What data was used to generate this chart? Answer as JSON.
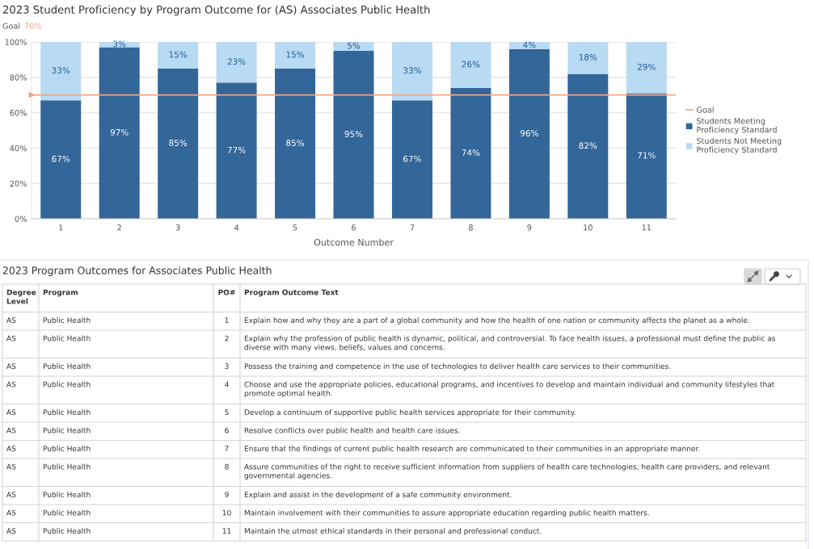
{
  "chart_data": [
    {
      "type": "bar",
      "title": "2023 Student Proficiency by Program Outcome for (AS) Associates Public Health",
      "annotations": [
        "Goal",
        "70%"
      ],
      "xlabel": "Outcome Number",
      "categories": [
        "1",
        "2",
        "3",
        "4",
        "5",
        "6",
        "7",
        "8",
        "9",
        "10",
        "11"
      ],
      "stacked": true,
      "series": [
        {
          "name": "Students Meeting Proficiency Standard",
          "color": "#336699",
          "values": [
            67,
            97,
            85,
            77,
            85,
            95,
            67,
            74,
            96,
            82,
            71
          ],
          "value_labels": [
            "67%",
            "97%",
            "85%",
            "77%",
            "85%",
            "95%",
            "67%",
            "74%",
            "96%",
            "82%",
            "71%"
          ]
        },
        {
          "name": "Students Not Meeting Proficiency Standard",
          "color": "#b9daf3",
          "values": [
            33,
            3,
            15,
            23,
            15,
            5,
            33,
            26,
            4,
            18,
            29
          ],
          "value_labels": [
            "33%",
            "3%",
            "15%",
            "23%",
            "15%",
            "5%",
            "33%",
            "26%",
            "4%",
            "18%",
            "29%"
          ]
        }
      ],
      "ylim": [
        0,
        100
      ],
      "yticks": [
        {
          "value": 0,
          "label": "0%"
        },
        {
          "value": 20,
          "label": "20%"
        },
        {
          "value": 40,
          "label": "40%"
        },
        {
          "value": 60,
          "label": "60%"
        },
        {
          "value": 80,
          "label": "80%"
        },
        {
          "value": 100,
          "label": "100%"
        }
      ],
      "grid": "y",
      "legend": "right",
      "ref_lines": [
        {
          "axis": "y",
          "value": 70,
          "label": "Goal",
          "color": "#f4a582"
        }
      ]
    },
    {
      "type": "other",
      "title": "2023 Program Outcomes for Associates Public Health",
      "categories": [
        "Degree Level",
        "Program",
        "PO#",
        "Program Outcome Text"
      ],
      "annotations": [
        "AS",
        "Public Health",
        "1",
        "Explain how and why they are a part of a global community and how the health of one nation or community affects the planet as a whole.",
        "AS",
        "Public Health",
        "2",
        "Explain why the profession of public health is dynamic, political, and controversial. To face health issues, a professional must define the public as diverse with many views, beliefs, values and concerns.",
        "AS",
        "Public Health",
        "3",
        "Possess the training and competence in the use of technologies to deliver health care services to their communities.",
        "AS",
        "Public Health",
        "4",
        "Choose and use the appropriate policies, educational programs, and incentives to develop and maintain individual and community lifestyles that promote optimal health.",
        "AS",
        "Public Health",
        "5",
        "Develop a continuum of supportive public health services appropriate for their community.",
        "AS",
        "Public Health",
        "6",
        "Resolve conflicts over public health and health care issues.",
        "AS",
        "Public Health",
        "7",
        "Ensure that the findings of current public health research are communicated to their communities in an appropriate manner.",
        "AS",
        "Public Health",
        "8",
        "Assure communities of the right to receive sufficient information from suppliers of health care technologies, health care providers, and relevant governmental agencies.",
        "AS",
        "Public Health",
        "9",
        "Explain and assist in the development of a safe community environment.",
        "AS",
        "Public Health",
        "10",
        "Maintain involvement with their communities to assure appropriate education regarding public health matters.",
        "AS",
        "Public Health",
        "11",
        "Maintain the utmost ethical standards in their personal and professional conduct."
      ]
    }
  ]
}
